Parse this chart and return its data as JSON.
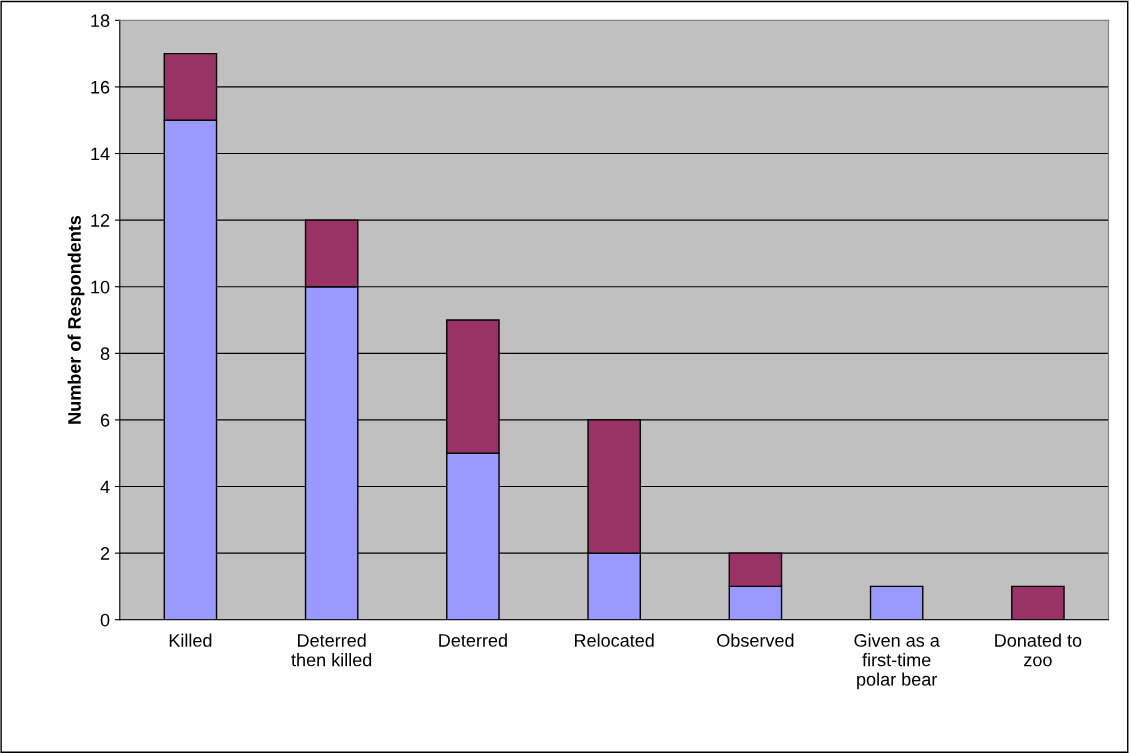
{
  "chart_data": {
    "type": "bar",
    "stacked": true,
    "ylabel": "Number of Respondents",
    "categories": [
      "Killed",
      "Deterred\nthen killed",
      "Deterred",
      "Relocated",
      "Observed",
      "Given as a\nfirst-time\npolar bear",
      "Donated to\nzoo"
    ],
    "series": [
      {
        "color": "#9999ff",
        "values": [
          15,
          10,
          5,
          2,
          1,
          1,
          null
        ]
      },
      {
        "color": "#993366",
        "values": [
          2,
          2,
          4,
          4,
          1,
          null,
          1
        ]
      }
    ],
    "ylim": [
      0,
      18
    ],
    "yticks": [
      0,
      2,
      4,
      6,
      8,
      10,
      12,
      14,
      16,
      18
    ],
    "grid": "y",
    "legend": false
  }
}
